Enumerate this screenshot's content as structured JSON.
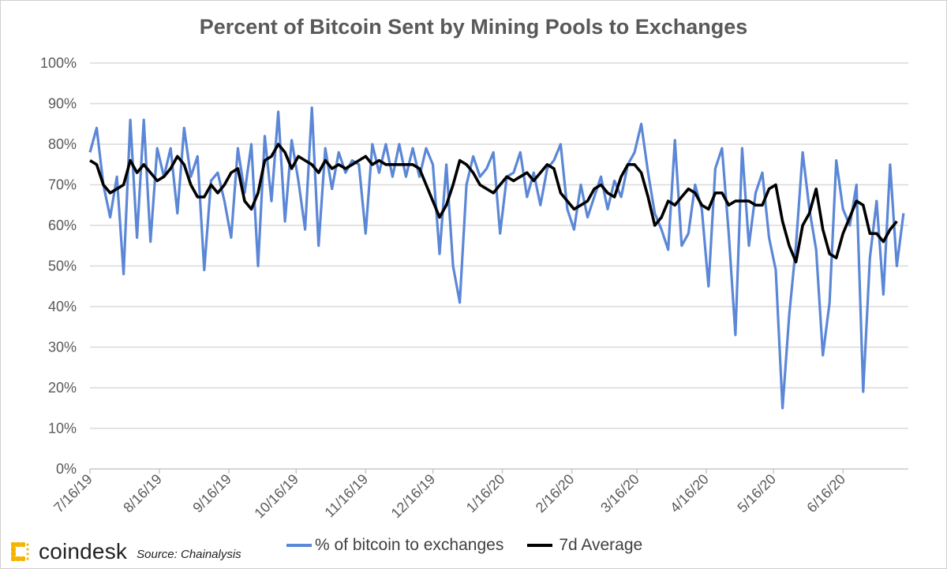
{
  "brand": {
    "name": "coindesk",
    "source": "Source: Chainalysis",
    "logo_color": "#f5b400"
  },
  "chart_data": {
    "type": "line",
    "title": "Percent of Bitcoin Sent by Mining Pools to Exchanges",
    "xlabel": "",
    "ylabel": "",
    "ylim": [
      0,
      100
    ],
    "yticks": [
      "0%",
      "10%",
      "20%",
      "30%",
      "40%",
      "50%",
      "60%",
      "70%",
      "80%",
      "90%",
      "100%"
    ],
    "xticks": [
      "7/16/19",
      "8/16/19",
      "9/16/19",
      "10/16/19",
      "11/16/19",
      "12/16/19",
      "1/16/20",
      "2/16/20",
      "3/16/20",
      "4/16/20",
      "5/16/20",
      "6/16/20"
    ],
    "grid": true,
    "legend": "bottom",
    "x": [
      "7/16/19",
      "7/19/19",
      "7/22/19",
      "7/25/19",
      "7/28/19",
      "7/31/19",
      "8/3/19",
      "8/6/19",
      "8/9/19",
      "8/12/19",
      "8/15/19",
      "8/18/19",
      "8/21/19",
      "8/24/19",
      "8/27/19",
      "8/30/19",
      "9/2/19",
      "9/5/19",
      "9/8/19",
      "9/11/19",
      "9/14/19",
      "9/17/19",
      "9/20/19",
      "9/23/19",
      "9/26/19",
      "9/29/19",
      "10/2/19",
      "10/5/19",
      "10/8/19",
      "10/11/19",
      "10/14/19",
      "10/17/19",
      "10/20/19",
      "10/23/19",
      "10/26/19",
      "10/29/19",
      "11/1/19",
      "11/4/19",
      "11/7/19",
      "11/10/19",
      "11/13/19",
      "11/16/19",
      "11/19/19",
      "11/22/19",
      "11/25/19",
      "11/28/19",
      "12/1/19",
      "12/4/19",
      "12/7/19",
      "12/10/19",
      "12/13/19",
      "12/16/19",
      "12/19/19",
      "12/22/19",
      "12/25/19",
      "12/28/19",
      "12/31/19",
      "1/3/20",
      "1/6/20",
      "1/9/20",
      "1/12/20",
      "1/15/20",
      "1/18/20",
      "1/21/20",
      "1/24/20",
      "1/27/20",
      "1/30/20",
      "2/2/20",
      "2/5/20",
      "2/8/20",
      "2/11/20",
      "2/14/20",
      "2/17/20",
      "2/20/20",
      "2/23/20",
      "2/26/20",
      "2/29/20",
      "3/3/20",
      "3/6/20",
      "3/9/20",
      "3/12/20",
      "3/15/20",
      "3/18/20",
      "3/21/20",
      "3/24/20",
      "3/27/20",
      "3/30/20",
      "4/2/20",
      "4/5/20",
      "4/8/20",
      "4/11/20",
      "4/14/20",
      "4/17/20",
      "4/20/20",
      "4/23/20",
      "4/26/20",
      "4/29/20",
      "5/2/20",
      "5/5/20",
      "5/8/20",
      "5/11/20",
      "5/14/20",
      "5/17/20",
      "5/20/20",
      "5/23/20",
      "5/26/20",
      "5/29/20",
      "6/1/20",
      "6/4/20",
      "6/7/20",
      "6/10/20",
      "6/13/20",
      "6/16/20",
      "6/19/20",
      "6/22/20",
      "6/25/20",
      "6/28/20",
      "7/1/20",
      "7/4/20",
      "7/7/20",
      "7/10/20",
      "7/13/20"
    ],
    "series": [
      {
        "name": "% of bitcoin to exchanges",
        "color": "#5b87d6",
        "values": [
          78,
          84,
          70,
          62,
          72,
          48,
          86,
          57,
          86,
          56,
          79,
          72,
          79,
          63,
          84,
          72,
          77,
          49,
          71,
          73,
          66,
          57,
          79,
          68,
          80,
          50,
          82,
          66,
          88,
          61,
          81,
          71,
          59,
          89,
          55,
          79,
          69,
          78,
          73,
          76,
          75,
          58,
          80,
          73,
          80,
          72,
          80,
          72,
          79,
          72,
          79,
          75,
          53,
          75,
          50,
          41,
          70,
          77,
          72,
          74,
          78,
          58,
          72,
          73,
          78,
          67,
          73,
          65,
          74,
          76,
          80,
          64,
          59,
          70,
          62,
          67,
          72,
          64,
          71,
          67,
          75,
          78,
          85,
          73,
          63,
          59,
          54,
          81,
          55,
          58,
          70,
          64,
          45,
          74,
          79,
          58,
          33,
          79,
          55,
          68,
          73,
          57,
          49,
          15,
          38,
          55,
          78,
          64,
          54,
          28,
          41,
          76,
          64,
          60,
          70,
          19,
          52,
          66,
          43,
          75,
          50,
          63
        ]
      },
      {
        "name": "7d Average",
        "color": "#000000",
        "values": [
          76,
          75,
          70,
          68,
          69,
          70,
          76,
          73,
          75,
          73,
          71,
          72,
          74,
          77,
          75,
          70,
          67,
          67,
          70,
          68,
          70,
          73,
          74,
          66,
          64,
          68,
          76,
          77,
          80,
          78,
          74,
          77,
          76,
          75,
          73,
          76,
          74,
          75,
          74,
          75,
          76,
          77,
          75,
          76,
          75,
          75,
          75,
          75,
          75,
          74,
          70,
          66,
          62,
          65,
          70,
          76,
          75,
          73,
          70,
          69,
          68,
          70,
          72,
          71,
          72,
          73,
          71,
          73,
          75,
          74,
          68,
          66,
          64,
          65,
          66,
          69,
          70,
          68,
          67,
          72,
          75,
          75,
          73,
          67,
          60,
          62,
          66,
          65,
          67,
          69,
          68,
          65,
          64,
          68,
          68,
          65,
          66,
          66,
          66,
          65,
          65,
          69,
          70,
          61,
          55,
          51,
          60,
          63,
          69,
          59,
          53,
          52,
          58,
          62,
          66,
          65,
          58,
          58,
          56,
          59,
          61,
          null
        ]
      }
    ]
  }
}
